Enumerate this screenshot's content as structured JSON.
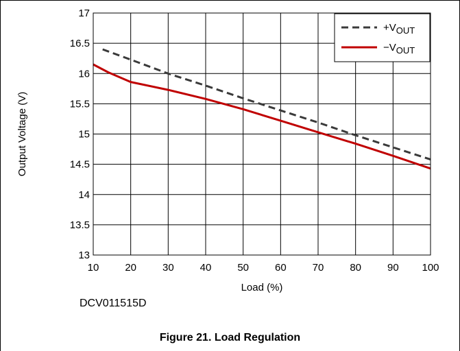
{
  "chart_data": {
    "type": "line",
    "title": "",
    "xlabel": "Load (%)",
    "ylabel": "Output Voltage (V)",
    "xlim": [
      10,
      100
    ],
    "ylim": [
      13,
      17
    ],
    "xticks": [
      10,
      20,
      30,
      40,
      50,
      60,
      70,
      80,
      90,
      100
    ],
    "yticks": [
      13,
      13.5,
      14,
      14.5,
      15,
      15.5,
      16,
      16.5,
      17
    ],
    "ytick_labels": [
      "13",
      "13.5",
      "14",
      "14.5",
      "15",
      "15.5",
      "16",
      "16.5",
      "17"
    ],
    "grid": true,
    "legend_position": "top-right",
    "series": [
      {
        "name": "+V",
        "name_sub": "OUT",
        "color": "#3a3a3a",
        "dash": "dashed",
        "x": [
          12.5,
          20,
          30,
          40,
          50,
          60,
          70,
          80,
          90,
          100
        ],
        "y": [
          16.4,
          16.23,
          16.0,
          15.8,
          15.59,
          15.39,
          15.19,
          14.98,
          14.78,
          14.58
        ]
      },
      {
        "name": "−V",
        "name_sub": "OUT",
        "color": "#c00000",
        "dash": "solid",
        "x": [
          10,
          14,
          20,
          30,
          40,
          50,
          60,
          70,
          80,
          90,
          100
        ],
        "y": [
          16.15,
          16.02,
          15.86,
          15.73,
          15.58,
          15.41,
          15.22,
          15.03,
          14.84,
          14.64,
          14.43
        ]
      }
    ]
  },
  "source_code": "DCV011515D",
  "caption": "Figure 21. Load Regulation"
}
